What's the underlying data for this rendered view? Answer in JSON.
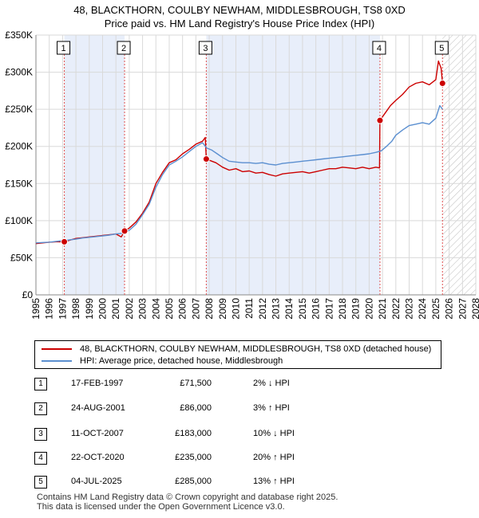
{
  "header": {
    "title": "48, BLACKTHORN, COULBY NEWHAM, MIDDLESBROUGH, TS8 0XD",
    "subtitle": "Price paid vs. HM Land Registry's House Price Index (HPI)"
  },
  "chart_data": {
    "type": "line",
    "ylim": [
      0,
      350000
    ],
    "xlim": [
      1995,
      2028
    ],
    "y_ticks": [
      0,
      50000,
      100000,
      150000,
      200000,
      250000,
      300000,
      350000
    ],
    "y_tick_labels": [
      "£0",
      "£50K",
      "£100K",
      "£150K",
      "£200K",
      "£250K",
      "£300K",
      "£350K"
    ],
    "x_ticks": [
      "1995",
      "1996",
      "1997",
      "1998",
      "1999",
      "2000",
      "2001",
      "2002",
      "2003",
      "2004",
      "2005",
      "2006",
      "2007",
      "2008",
      "2009",
      "2010",
      "2011",
      "2012",
      "2013",
      "2014",
      "2015",
      "2016",
      "2017",
      "2018",
      "2019",
      "2020",
      "2021",
      "2022",
      "2023",
      "2024",
      "2025",
      "2026",
      "2027",
      "2028"
    ],
    "shaded_periods": [
      [
        1997.13,
        2001.65
      ],
      [
        2007.78,
        2020.81
      ]
    ],
    "hatched_region": [
      2025.5,
      2028
    ],
    "series": [
      {
        "name": "48, BLACKTHORN, COULBY NEWHAM, MIDDLESBROUGH, TS8 0XD (detached house)",
        "color": "#cc0000",
        "x": [
          1995.0,
          1995.5,
          1996.0,
          1996.5,
          1997.13,
          1997.6,
          1998.0,
          1998.5,
          1999.0,
          1999.5,
          2000.0,
          2000.5,
          2001.0,
          2001.4,
          2001.65,
          2002.0,
          2002.5,
          2003.0,
          2003.5,
          2004.0,
          2004.5,
          2005.0,
          2005.5,
          2006.0,
          2006.5,
          2007.0,
          2007.5,
          2007.7,
          2007.78,
          2008.2,
          2008.5,
          2009.0,
          2009.5,
          2010.0,
          2010.5,
          2011.0,
          2011.5,
          2012.0,
          2012.5,
          2013.0,
          2013.5,
          2014.0,
          2014.5,
          2015.0,
          2015.5,
          2016.0,
          2016.5,
          2017.0,
          2017.5,
          2018.0,
          2018.5,
          2019.0,
          2019.5,
          2020.0,
          2020.5,
          2020.78,
          2020.81,
          2021.2,
          2021.6,
          2022.0,
          2022.5,
          2023.0,
          2023.5,
          2024.0,
          2024.5,
          2025.0,
          2025.2,
          2025.4,
          2025.5
        ],
        "values": [
          69000,
          70000,
          71000,
          71500,
          71500,
          74000,
          76000,
          77000,
          78000,
          79000,
          80000,
          81000,
          82000,
          78000,
          86000,
          90000,
          98000,
          110000,
          125000,
          150000,
          165000,
          178000,
          182000,
          190000,
          196000,
          203000,
          207000,
          212000,
          183000,
          180000,
          178000,
          172000,
          168000,
          170000,
          166000,
          167000,
          164000,
          165000,
          162000,
          160000,
          163000,
          164000,
          165000,
          166000,
          164000,
          166000,
          168000,
          170000,
          170000,
          172000,
          171000,
          170000,
          172000,
          170000,
          172000,
          171000,
          235000,
          245000,
          255000,
          262000,
          270000,
          280000,
          285000,
          287000,
          283000,
          290000,
          315000,
          305000,
          285000
        ]
      },
      {
        "name": "HPI: Average price, detached house, Middlesbrough",
        "color": "#5b8fd0",
        "x": [
          1995.0,
          1995.5,
          1996.0,
          1996.5,
          1997.0,
          1997.5,
          1998.0,
          1998.5,
          1999.0,
          1999.5,
          2000.0,
          2000.5,
          2001.0,
          2001.5,
          2002.0,
          2002.5,
          2003.0,
          2003.5,
          2004.0,
          2004.5,
          2005.0,
          2005.5,
          2006.0,
          2006.5,
          2007.0,
          2007.5,
          2007.8,
          2008.2,
          2008.6,
          2009.0,
          2009.5,
          2010.0,
          2010.5,
          2011.0,
          2011.5,
          2012.0,
          2012.5,
          2013.0,
          2013.5,
          2014.0,
          2014.5,
          2015.0,
          2015.5,
          2016.0,
          2016.5,
          2017.0,
          2017.5,
          2018.0,
          2018.5,
          2019.0,
          2019.5,
          2020.0,
          2020.5,
          2020.9,
          2021.3,
          2021.7,
          2022.0,
          2022.5,
          2023.0,
          2023.5,
          2024.0,
          2024.5,
          2025.0,
          2025.3,
          2025.5
        ],
        "values": [
          70000,
          70500,
          71000,
          72000,
          73000,
          74000,
          75000,
          76500,
          77500,
          78500,
          79500,
          80500,
          82000,
          83000,
          87000,
          95000,
          108000,
          122000,
          145000,
          162000,
          175000,
          180000,
          186000,
          193000,
          200000,
          205000,
          198000,
          195000,
          190000,
          185000,
          180000,
          179000,
          178000,
          178000,
          177000,
          178000,
          176000,
          175000,
          177000,
          178000,
          179000,
          180000,
          181000,
          182000,
          183000,
          184000,
          185000,
          186000,
          187000,
          188000,
          189000,
          190000,
          192000,
          194000,
          200000,
          207000,
          215000,
          222000,
          228000,
          230000,
          232000,
          230000,
          238000,
          255000,
          250000
        ]
      }
    ],
    "sales": [
      {
        "label": "1",
        "year": 1997.13,
        "price": 71500
      },
      {
        "label": "2",
        "year": 2001.65,
        "price": 86000
      },
      {
        "label": "3",
        "year": 2007.78,
        "price": 183000
      },
      {
        "label": "4",
        "year": 2020.81,
        "price": 235000
      },
      {
        "label": "5",
        "year": 2025.5,
        "price": 285000
      }
    ]
  },
  "legend": {
    "items": [
      {
        "label": "48, BLACKTHORN, COULBY NEWHAM, MIDDLESBROUGH, TS8 0XD (detached house)",
        "color": "#cc0000"
      },
      {
        "label": "HPI: Average price, detached house, Middlesbrough",
        "color": "#5b8fd0"
      }
    ]
  },
  "transactions": [
    {
      "num": "1",
      "date": "17-FEB-1997",
      "price": "£71,500",
      "hpi": "2% ↓ HPI"
    },
    {
      "num": "2",
      "date": "24-AUG-2001",
      "price": "£86,000",
      "hpi": "3% ↑ HPI"
    },
    {
      "num": "3",
      "date": "11-OCT-2007",
      "price": "£183,000",
      "hpi": "10% ↓ HPI"
    },
    {
      "num": "4",
      "date": "22-OCT-2020",
      "price": "£235,000",
      "hpi": "20% ↑ HPI"
    },
    {
      "num": "5",
      "date": "04-JUL-2025",
      "price": "£285,000",
      "hpi": "13% ↑ HPI"
    }
  ],
  "footer": {
    "line1": "Contains HM Land Registry data © Crown copyright and database right 2025.",
    "line2": "This data is licensed under the Open Government Licence v3.0."
  }
}
